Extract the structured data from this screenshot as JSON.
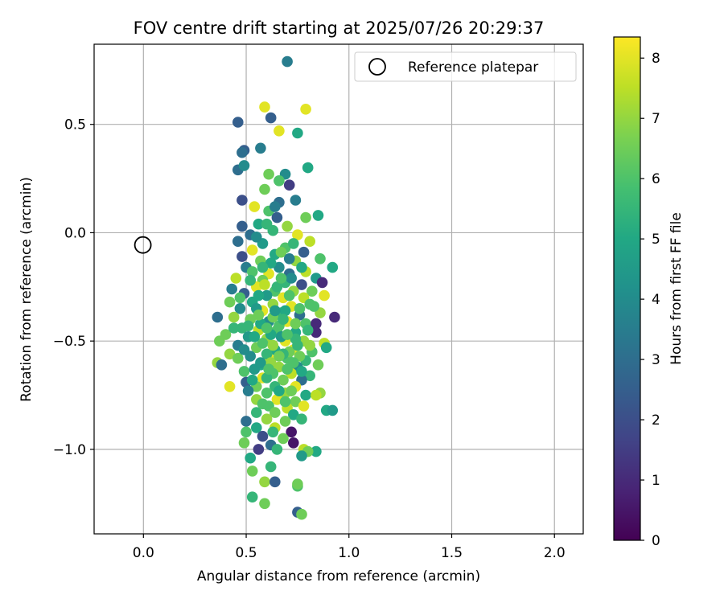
{
  "chart_data": {
    "type": "scatter",
    "title": "FOV centre drift starting at 2025/07/26 20:29:37",
    "xlabel": "Angular distance from reference (arcmin)",
    "ylabel": "Rotation from reference (arcmin)",
    "xlim": [
      -0.24,
      2.14
    ],
    "ylim": [
      -1.39,
      0.87
    ],
    "xticks": [
      0.0,
      0.5,
      1.0,
      1.5,
      2.0
    ],
    "xtick_labels": [
      "0.0",
      "0.5",
      "1.0",
      "1.5",
      "2.0"
    ],
    "yticks": [
      -1.0,
      -0.5,
      0.0,
      0.5
    ],
    "ytick_labels": [
      "−1.0",
      "−0.5",
      "0.0",
      "0.5"
    ],
    "grid": true,
    "legend": {
      "position": "upper right",
      "entries": [
        "Reference platepar"
      ]
    },
    "reference_point": {
      "x": 0.0,
      "y": 0.0
    },
    "colorbar": {
      "label": "Hours from first FF file",
      "colormap": "viridis",
      "range": [
        0,
        8.35
      ],
      "ticks": [
        0,
        1,
        2,
        3,
        4,
        5,
        6,
        7,
        8
      ],
      "tick_labels": [
        "0",
        "1",
        "2",
        "3",
        "4",
        "5",
        "6",
        "7",
        "8"
      ]
    },
    "point_summary": {
      "count": 300,
      "x_range": [
        0.35,
        0.93
      ],
      "x_center": 0.65,
      "y_range": [
        -1.3,
        0.79
      ],
      "y_center": -0.55
    },
    "points": [
      {
        "x": 0.7,
        "y": 0.79,
        "h": 3.5
      },
      {
        "x": 0.59,
        "y": 0.58,
        "h": 8.0
      },
      {
        "x": 0.79,
        "y": 0.57,
        "h": 8.0
      },
      {
        "x": 0.62,
        "y": 0.53,
        "h": 2.5
      },
      {
        "x": 0.46,
        "y": 0.51,
        "h": 2.5
      },
      {
        "x": 0.66,
        "y": 0.47,
        "h": 8.0
      },
      {
        "x": 0.75,
        "y": 0.46,
        "h": 5.0
      },
      {
        "x": 0.49,
        "y": 0.38,
        "h": 2.5
      },
      {
        "x": 0.48,
        "y": 0.37,
        "h": 3.0
      },
      {
        "x": 0.57,
        "y": 0.39,
        "h": 3.5
      },
      {
        "x": 0.46,
        "y": 0.29,
        "h": 3.0
      },
      {
        "x": 0.49,
        "y": 0.31,
        "h": 4.0
      },
      {
        "x": 0.61,
        "y": 0.27,
        "h": 6.5
      },
      {
        "x": 0.69,
        "y": 0.27,
        "h": 4.0
      },
      {
        "x": 0.8,
        "y": 0.3,
        "h": 5.0
      },
      {
        "x": 0.71,
        "y": 0.22,
        "h": 1.5
      },
      {
        "x": 0.66,
        "y": 0.24,
        "h": 6.0
      },
      {
        "x": 0.59,
        "y": 0.2,
        "h": 6.5
      },
      {
        "x": 0.66,
        "y": 0.14,
        "h": 3.0
      },
      {
        "x": 0.48,
        "y": 0.15,
        "h": 2.0
      },
      {
        "x": 0.54,
        "y": 0.12,
        "h": 8.0
      },
      {
        "x": 0.61,
        "y": 0.1,
        "h": 6.0
      },
      {
        "x": 0.74,
        "y": 0.15,
        "h": 3.5
      },
      {
        "x": 0.65,
        "y": 0.07,
        "h": 2.5
      },
      {
        "x": 0.79,
        "y": 0.07,
        "h": 6.5
      },
      {
        "x": 0.85,
        "y": 0.08,
        "h": 5.0
      },
      {
        "x": 0.56,
        "y": 0.04,
        "h": 5.0
      },
      {
        "x": 0.48,
        "y": 0.03,
        "h": 2.5
      },
      {
        "x": 0.7,
        "y": 0.03,
        "h": 7.0
      },
      {
        "x": 0.63,
        "y": 0.01,
        "h": 5.5
      },
      {
        "x": 0.75,
        "y": -0.01,
        "h": 8.0
      },
      {
        "x": 0.52,
        "y": -0.01,
        "h": 3.0
      },
      {
        "x": 0.81,
        "y": -0.04,
        "h": 7.5
      },
      {
        "x": 0.46,
        "y": -0.04,
        "h": 3.0
      },
      {
        "x": 0.58,
        "y": -0.05,
        "h": 4.5
      },
      {
        "x": 0.69,
        "y": -0.07,
        "h": 6.0
      },
      {
        "x": 0.53,
        "y": -0.08,
        "h": 8.0
      },
      {
        "x": 0.78,
        "y": -0.09,
        "h": 2.5
      },
      {
        "x": 0.64,
        "y": -0.1,
        "h": 5.0
      },
      {
        "x": 0.48,
        "y": -0.11,
        "h": 2.0
      },
      {
        "x": 0.74,
        "y": -0.13,
        "h": 7.0
      },
      {
        "x": 0.57,
        "y": -0.13,
        "h": 6.5
      },
      {
        "x": 0.86,
        "y": -0.12,
        "h": 6.0
      },
      {
        "x": 0.5,
        "y": -0.16,
        "h": 3.5
      },
      {
        "x": 0.66,
        "y": -0.16,
        "h": 4.0
      },
      {
        "x": 0.79,
        "y": -0.18,
        "h": 7.5
      },
      {
        "x": 0.92,
        "y": -0.16,
        "h": 5.0
      },
      {
        "x": 0.53,
        "y": -0.18,
        "h": 6.0
      },
      {
        "x": 0.61,
        "y": -0.19,
        "h": 8.0
      },
      {
        "x": 0.71,
        "y": -0.19,
        "h": 3.0
      },
      {
        "x": 0.84,
        "y": -0.21,
        "h": 4.5
      },
      {
        "x": 0.45,
        "y": -0.21,
        "h": 7.5
      },
      {
        "x": 0.58,
        "y": -0.22,
        "h": 6.5
      },
      {
        "x": 0.69,
        "y": -0.23,
        "h": 5.5
      },
      {
        "x": 0.77,
        "y": -0.24,
        "h": 2.0
      },
      {
        "x": 0.87,
        "y": -0.23,
        "h": 1.0
      },
      {
        "x": 0.43,
        "y": -0.26,
        "h": 3.5
      },
      {
        "x": 0.55,
        "y": -0.25,
        "h": 8.0
      },
      {
        "x": 0.64,
        "y": -0.27,
        "h": 6.0
      },
      {
        "x": 0.73,
        "y": -0.27,
        "h": 7.0
      },
      {
        "x": 0.82,
        "y": -0.27,
        "h": 6.5
      },
      {
        "x": 0.49,
        "y": -0.28,
        "h": 2.5
      },
      {
        "x": 0.6,
        "y": -0.29,
        "h": 4.5
      },
      {
        "x": 0.68,
        "y": -0.3,
        "h": 8.0
      },
      {
        "x": 0.78,
        "y": -0.3,
        "h": 7.5
      },
      {
        "x": 0.88,
        "y": -0.29,
        "h": 8.0
      },
      {
        "x": 0.42,
        "y": -0.32,
        "h": 6.5
      },
      {
        "x": 0.53,
        "y": -0.32,
        "h": 5.0
      },
      {
        "x": 0.63,
        "y": -0.33,
        "h": 7.0
      },
      {
        "x": 0.72,
        "y": -0.34,
        "h": 8.0
      },
      {
        "x": 0.81,
        "y": -0.33,
        "h": 6.0
      },
      {
        "x": 0.47,
        "y": -0.35,
        "h": 4.0
      },
      {
        "x": 0.58,
        "y": -0.36,
        "h": 8.0
      },
      {
        "x": 0.67,
        "y": -0.37,
        "h": 5.5
      },
      {
        "x": 0.76,
        "y": -0.38,
        "h": 3.0
      },
      {
        "x": 0.86,
        "y": -0.37,
        "h": 7.0
      },
      {
        "x": 0.36,
        "y": -0.39,
        "h": 3.0
      },
      {
        "x": 0.44,
        "y": -0.39,
        "h": 7.0
      },
      {
        "x": 0.52,
        "y": -0.4,
        "h": 6.5
      },
      {
        "x": 0.61,
        "y": -0.41,
        "h": 4.0
      },
      {
        "x": 0.7,
        "y": -0.41,
        "h": 8.0
      },
      {
        "x": 0.79,
        "y": -0.42,
        "h": 6.0
      },
      {
        "x": 0.93,
        "y": -0.39,
        "h": 1.0
      },
      {
        "x": 0.84,
        "y": -0.42,
        "h": 1.0
      },
      {
        "x": 0.48,
        "y": -0.44,
        "h": 5.5
      },
      {
        "x": 0.56,
        "y": -0.45,
        "h": 7.5
      },
      {
        "x": 0.65,
        "y": -0.45,
        "h": 6.0
      },
      {
        "x": 0.74,
        "y": -0.46,
        "h": 5.0
      },
      {
        "x": 0.84,
        "y": -0.46,
        "h": 1.0
      },
      {
        "x": 0.4,
        "y": -0.47,
        "h": 6.5
      },
      {
        "x": 0.51,
        "y": -0.48,
        "h": 4.5
      },
      {
        "x": 0.6,
        "y": -0.49,
        "h": 7.0
      },
      {
        "x": 0.69,
        "y": -0.5,
        "h": 8.0
      },
      {
        "x": 0.78,
        "y": -0.5,
        "h": 7.0
      },
      {
        "x": 0.88,
        "y": -0.51,
        "h": 7.5
      },
      {
        "x": 0.37,
        "y": -0.5,
        "h": 6.5
      },
      {
        "x": 0.46,
        "y": -0.52,
        "h": 3.5
      },
      {
        "x": 0.55,
        "y": -0.53,
        "h": 6.5
      },
      {
        "x": 0.64,
        "y": -0.54,
        "h": 5.0
      },
      {
        "x": 0.73,
        "y": -0.54,
        "h": 8.0
      },
      {
        "x": 0.82,
        "y": -0.55,
        "h": 6.0
      },
      {
        "x": 0.89,
        "y": -0.53,
        "h": 5.0
      },
      {
        "x": 0.42,
        "y": -0.56,
        "h": 7.0
      },
      {
        "x": 0.52,
        "y": -0.57,
        "h": 4.0
      },
      {
        "x": 0.61,
        "y": -0.58,
        "h": 8.0
      },
      {
        "x": 0.7,
        "y": -0.58,
        "h": 6.0
      },
      {
        "x": 0.79,
        "y": -0.59,
        "h": 5.5
      },
      {
        "x": 0.46,
        "y": -0.58,
        "h": 6.5
      },
      {
        "x": 0.36,
        "y": -0.6,
        "h": 7.0
      },
      {
        "x": 0.38,
        "y": -0.61,
        "h": 3.0
      },
      {
        "x": 0.57,
        "y": -0.61,
        "h": 5.0
      },
      {
        "x": 0.66,
        "y": -0.62,
        "h": 7.0
      },
      {
        "x": 0.75,
        "y": -0.62,
        "h": 4.0
      },
      {
        "x": 0.85,
        "y": -0.61,
        "h": 6.5
      },
      {
        "x": 0.49,
        "y": -0.64,
        "h": 6.0
      },
      {
        "x": 0.54,
        "y": -0.63,
        "h": 4.5
      },
      {
        "x": 0.63,
        "y": -0.65,
        "h": 6.0
      },
      {
        "x": 0.72,
        "y": -0.65,
        "h": 7.5
      },
      {
        "x": 0.81,
        "y": -0.66,
        "h": 5.5
      },
      {
        "x": 0.58,
        "y": -0.67,
        "h": 8.0
      },
      {
        "x": 0.68,
        "y": -0.68,
        "h": 6.5
      },
      {
        "x": 0.77,
        "y": -0.68,
        "h": 3.0
      },
      {
        "x": 0.5,
        "y": -0.69,
        "h": 2.5
      },
      {
        "x": 0.42,
        "y": -0.71,
        "h": 8.0
      },
      {
        "x": 0.55,
        "y": -0.71,
        "h": 6.5
      },
      {
        "x": 0.64,
        "y": -0.71,
        "h": 5.5
      },
      {
        "x": 0.74,
        "y": -0.71,
        "h": 8.0
      },
      {
        "x": 0.51,
        "y": -0.73,
        "h": 3.5
      },
      {
        "x": 0.6,
        "y": -0.74,
        "h": 6.0
      },
      {
        "x": 0.69,
        "y": -0.74,
        "h": 7.0
      },
      {
        "x": 0.79,
        "y": -0.75,
        "h": 5.0
      },
      {
        "x": 0.86,
        "y": -0.74,
        "h": 7.0
      },
      {
        "x": 0.55,
        "y": -0.77,
        "h": 7.0
      },
      {
        "x": 0.65,
        "y": -0.77,
        "h": 8.0
      },
      {
        "x": 0.74,
        "y": -0.78,
        "h": 6.5
      },
      {
        "x": 0.84,
        "y": -0.75,
        "h": 7.5
      },
      {
        "x": 0.61,
        "y": -0.8,
        "h": 6.0
      },
      {
        "x": 0.7,
        "y": -0.81,
        "h": 7.5
      },
      {
        "x": 0.78,
        "y": -0.8,
        "h": 8.0
      },
      {
        "x": 0.55,
        "y": -0.83,
        "h": 5.5
      },
      {
        "x": 0.64,
        "y": -0.83,
        "h": 6.5
      },
      {
        "x": 0.73,
        "y": -0.84,
        "h": 5.0
      },
      {
        "x": 0.89,
        "y": -0.82,
        "h": 5.0
      },
      {
        "x": 0.92,
        "y": -0.82,
        "h": 4.5
      },
      {
        "x": 0.5,
        "y": -0.87,
        "h": 3.0
      },
      {
        "x": 0.6,
        "y": -0.86,
        "h": 7.0
      },
      {
        "x": 0.69,
        "y": -0.87,
        "h": 6.5
      },
      {
        "x": 0.77,
        "y": -0.86,
        "h": 5.5
      },
      {
        "x": 0.55,
        "y": -0.9,
        "h": 5.0
      },
      {
        "x": 0.64,
        "y": -0.9,
        "h": 7.5
      },
      {
        "x": 0.72,
        "y": -0.92,
        "h": 0.5
      },
      {
        "x": 0.5,
        "y": -0.92,
        "h": 6.0
      },
      {
        "x": 0.58,
        "y": -0.94,
        "h": 2.0
      },
      {
        "x": 0.68,
        "y": -0.95,
        "h": 6.5
      },
      {
        "x": 0.73,
        "y": -0.97,
        "h": 0.5
      },
      {
        "x": 0.49,
        "y": -0.97,
        "h": 6.5
      },
      {
        "x": 0.62,
        "y": -0.98,
        "h": 3.0
      },
      {
        "x": 0.65,
        "y": -1.0,
        "h": 5.5
      },
      {
        "x": 0.56,
        "y": -1.0,
        "h": 1.5
      },
      {
        "x": 0.78,
        "y": -1.0,
        "h": 7.5
      },
      {
        "x": 0.84,
        "y": -1.01,
        "h": 5.0
      },
      {
        "x": 0.8,
        "y": -1.01,
        "h": 6.5
      },
      {
        "x": 0.77,
        "y": -1.03,
        "h": 4.5
      },
      {
        "x": 0.52,
        "y": -1.04,
        "h": 5.0
      },
      {
        "x": 0.62,
        "y": -1.08,
        "h": 5.5
      },
      {
        "x": 0.53,
        "y": -1.1,
        "h": 6.5
      },
      {
        "x": 0.59,
        "y": -1.15,
        "h": 7.0
      },
      {
        "x": 0.64,
        "y": -1.15,
        "h": 2.5
      },
      {
        "x": 0.75,
        "y": -1.17,
        "h": 6.0
      },
      {
        "x": 0.75,
        "y": -1.16,
        "h": 6.5
      },
      {
        "x": 0.53,
        "y": -1.22,
        "h": 5.5
      },
      {
        "x": 0.59,
        "y": -1.25,
        "h": 6.5
      },
      {
        "x": 0.75,
        "y": -1.29,
        "h": 2.5
      },
      {
        "x": 0.77,
        "y": -1.3,
        "h": 6.5
      },
      {
        "x": 0.57,
        "y": -0.42,
        "h": 5.0
      },
      {
        "x": 0.66,
        "y": -0.43,
        "h": 6.0
      },
      {
        "x": 0.6,
        "y": -0.56,
        "h": 5.5
      },
      {
        "x": 0.71,
        "y": -0.55,
        "h": 6.5
      },
      {
        "x": 0.62,
        "y": -0.6,
        "h": 7.0
      },
      {
        "x": 0.67,
        "y": -0.48,
        "h": 4.5
      },
      {
        "x": 0.58,
        "y": -0.51,
        "h": 6.0
      },
      {
        "x": 0.74,
        "y": -0.49,
        "h": 5.5
      },
      {
        "x": 0.63,
        "y": -0.39,
        "h": 6.5
      },
      {
        "x": 0.69,
        "y": -0.36,
        "h": 5.0
      },
      {
        "x": 0.55,
        "y": -0.35,
        "h": 4.5
      },
      {
        "x": 0.76,
        "y": -0.35,
        "h": 6.0
      },
      {
        "x": 0.65,
        "y": -0.25,
        "h": 5.5
      },
      {
        "x": 0.59,
        "y": -0.24,
        "h": 7.5
      },
      {
        "x": 0.72,
        "y": -0.21,
        "h": 4.0
      },
      {
        "x": 0.62,
        "y": -0.14,
        "h": 5.0
      },
      {
        "x": 0.67,
        "y": -0.09,
        "h": 6.5
      },
      {
        "x": 0.71,
        "y": -0.12,
        "h": 3.5
      },
      {
        "x": 0.55,
        "y": -0.02,
        "h": 4.0
      },
      {
        "x": 0.6,
        "y": 0.04,
        "h": 5.5
      },
      {
        "x": 0.64,
        "y": 0.12,
        "h": 3.5
      },
      {
        "x": 0.52,
        "y": -0.22,
        "h": 5.5
      },
      {
        "x": 0.47,
        "y": -0.3,
        "h": 6.0
      },
      {
        "x": 0.44,
        "y": -0.44,
        "h": 5.5
      },
      {
        "x": 0.49,
        "y": -0.54,
        "h": 4.0
      },
      {
        "x": 0.53,
        "y": -0.68,
        "h": 5.0
      },
      {
        "x": 0.58,
        "y": -0.79,
        "h": 6.0
      },
      {
        "x": 0.66,
        "y": -0.73,
        "h": 5.0
      },
      {
        "x": 0.7,
        "y": -0.63,
        "h": 6.0
      },
      {
        "x": 0.76,
        "y": -0.57,
        "h": 6.5
      },
      {
        "x": 0.8,
        "y": -0.45,
        "h": 5.5
      },
      {
        "x": 0.83,
        "y": -0.34,
        "h": 6.0
      },
      {
        "x": 0.77,
        "y": -0.16,
        "h": 5.0
      },
      {
        "x": 0.73,
        "y": -0.05,
        "h": 5.5
      },
      {
        "x": 0.57,
        "y": -0.6,
        "h": 4.5
      },
      {
        "x": 0.68,
        "y": -0.56,
        "h": 5.5
      },
      {
        "x": 0.62,
        "y": -0.47,
        "h": 5.0
      },
      {
        "x": 0.64,
        "y": -0.36,
        "h": 4.5
      },
      {
        "x": 0.71,
        "y": -0.29,
        "h": 6.0
      },
      {
        "x": 0.56,
        "y": -0.29,
        "h": 5.0
      },
      {
        "x": 0.51,
        "y": -0.43,
        "h": 5.5
      },
      {
        "x": 0.6,
        "y": -0.67,
        "h": 5.5
      },
      {
        "x": 0.69,
        "y": -0.78,
        "h": 6.0
      },
      {
        "x": 0.63,
        "y": -0.92,
        "h": 5.5
      },
      {
        "x": 0.72,
        "y": -0.73,
        "h": 6.5
      },
      {
        "x": 0.77,
        "y": -0.64,
        "h": 5.0
      },
      {
        "x": 0.81,
        "y": -0.52,
        "h": 7.0
      },
      {
        "x": 0.74,
        "y": -0.42,
        "h": 6.5
      },
      {
        "x": 0.67,
        "y": -0.21,
        "h": 6.0
      },
      {
        "x": 0.58,
        "y": -0.16,
        "h": 5.5
      },
      {
        "x": 0.54,
        "y": -0.48,
        "h": 5.0
      },
      {
        "x": 0.66,
        "y": -0.57,
        "h": 6.5
      },
      {
        "x": 0.6,
        "y": -0.44,
        "h": 6.0
      },
      {
        "x": 0.7,
        "y": -0.47,
        "h": 6.0
      },
      {
        "x": 0.63,
        "y": -0.52,
        "h": 7.0
      },
      {
        "x": 0.68,
        "y": -0.4,
        "h": 5.5
      },
      {
        "x": 0.56,
        "y": -0.38,
        "h": 6.5
      },
      {
        "x": 0.75,
        "y": -0.52,
        "h": 5.5
      },
      {
        "x": 0.61,
        "y": -0.63,
        "h": 6.0
      },
      {
        "x": 0.73,
        "y": -0.6,
        "h": 6.0
      }
    ]
  }
}
